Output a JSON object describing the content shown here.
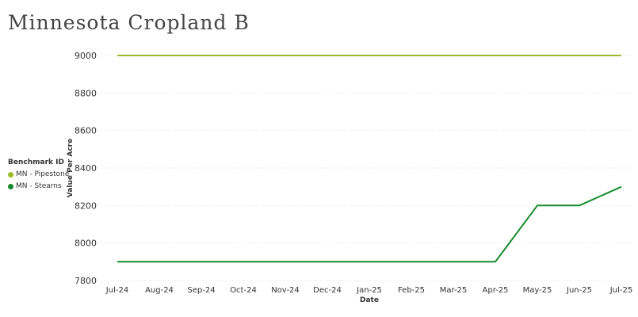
{
  "title": "Minnesota Cropland B",
  "legend": {
    "title": "Benchmark ID",
    "items": [
      {
        "label": "MN - Pipestone",
        "color": "#9bbb2a"
      },
      {
        "label": "MN - Stearns",
        "color": "#168a2c"
      }
    ]
  },
  "chart_data": {
    "type": "line",
    "title": "Minnesota Cropland B",
    "xlabel": "Date",
    "ylabel": "Value Per Acre",
    "categories": [
      "Jul-24",
      "Aug-24",
      "Sep-24",
      "Oct-24",
      "Nov-24",
      "Dec-24",
      "Jan-25",
      "Feb-25",
      "Mar-25",
      "Apr-25",
      "May-25",
      "Jun-25",
      "Jul-25"
    ],
    "ylim": [
      7800,
      9000
    ],
    "yticks": [
      7800,
      8000,
      8200,
      8400,
      8600,
      8800,
      9000
    ],
    "grid": true,
    "legend_position": "left",
    "series": [
      {
        "name": "MN - Pipestone",
        "color": "#9bbb2a",
        "values": [
          9000,
          9000,
          9000,
          9000,
          9000,
          9000,
          9000,
          9000,
          9000,
          9000,
          9000,
          9000,
          9000
        ]
      },
      {
        "name": "MN - Stearns",
        "color": "#168a2c",
        "values": [
          7900,
          7900,
          7900,
          7900,
          7900,
          7900,
          7900,
          7900,
          7900,
          7900,
          8200,
          8200,
          8300
        ]
      }
    ]
  }
}
